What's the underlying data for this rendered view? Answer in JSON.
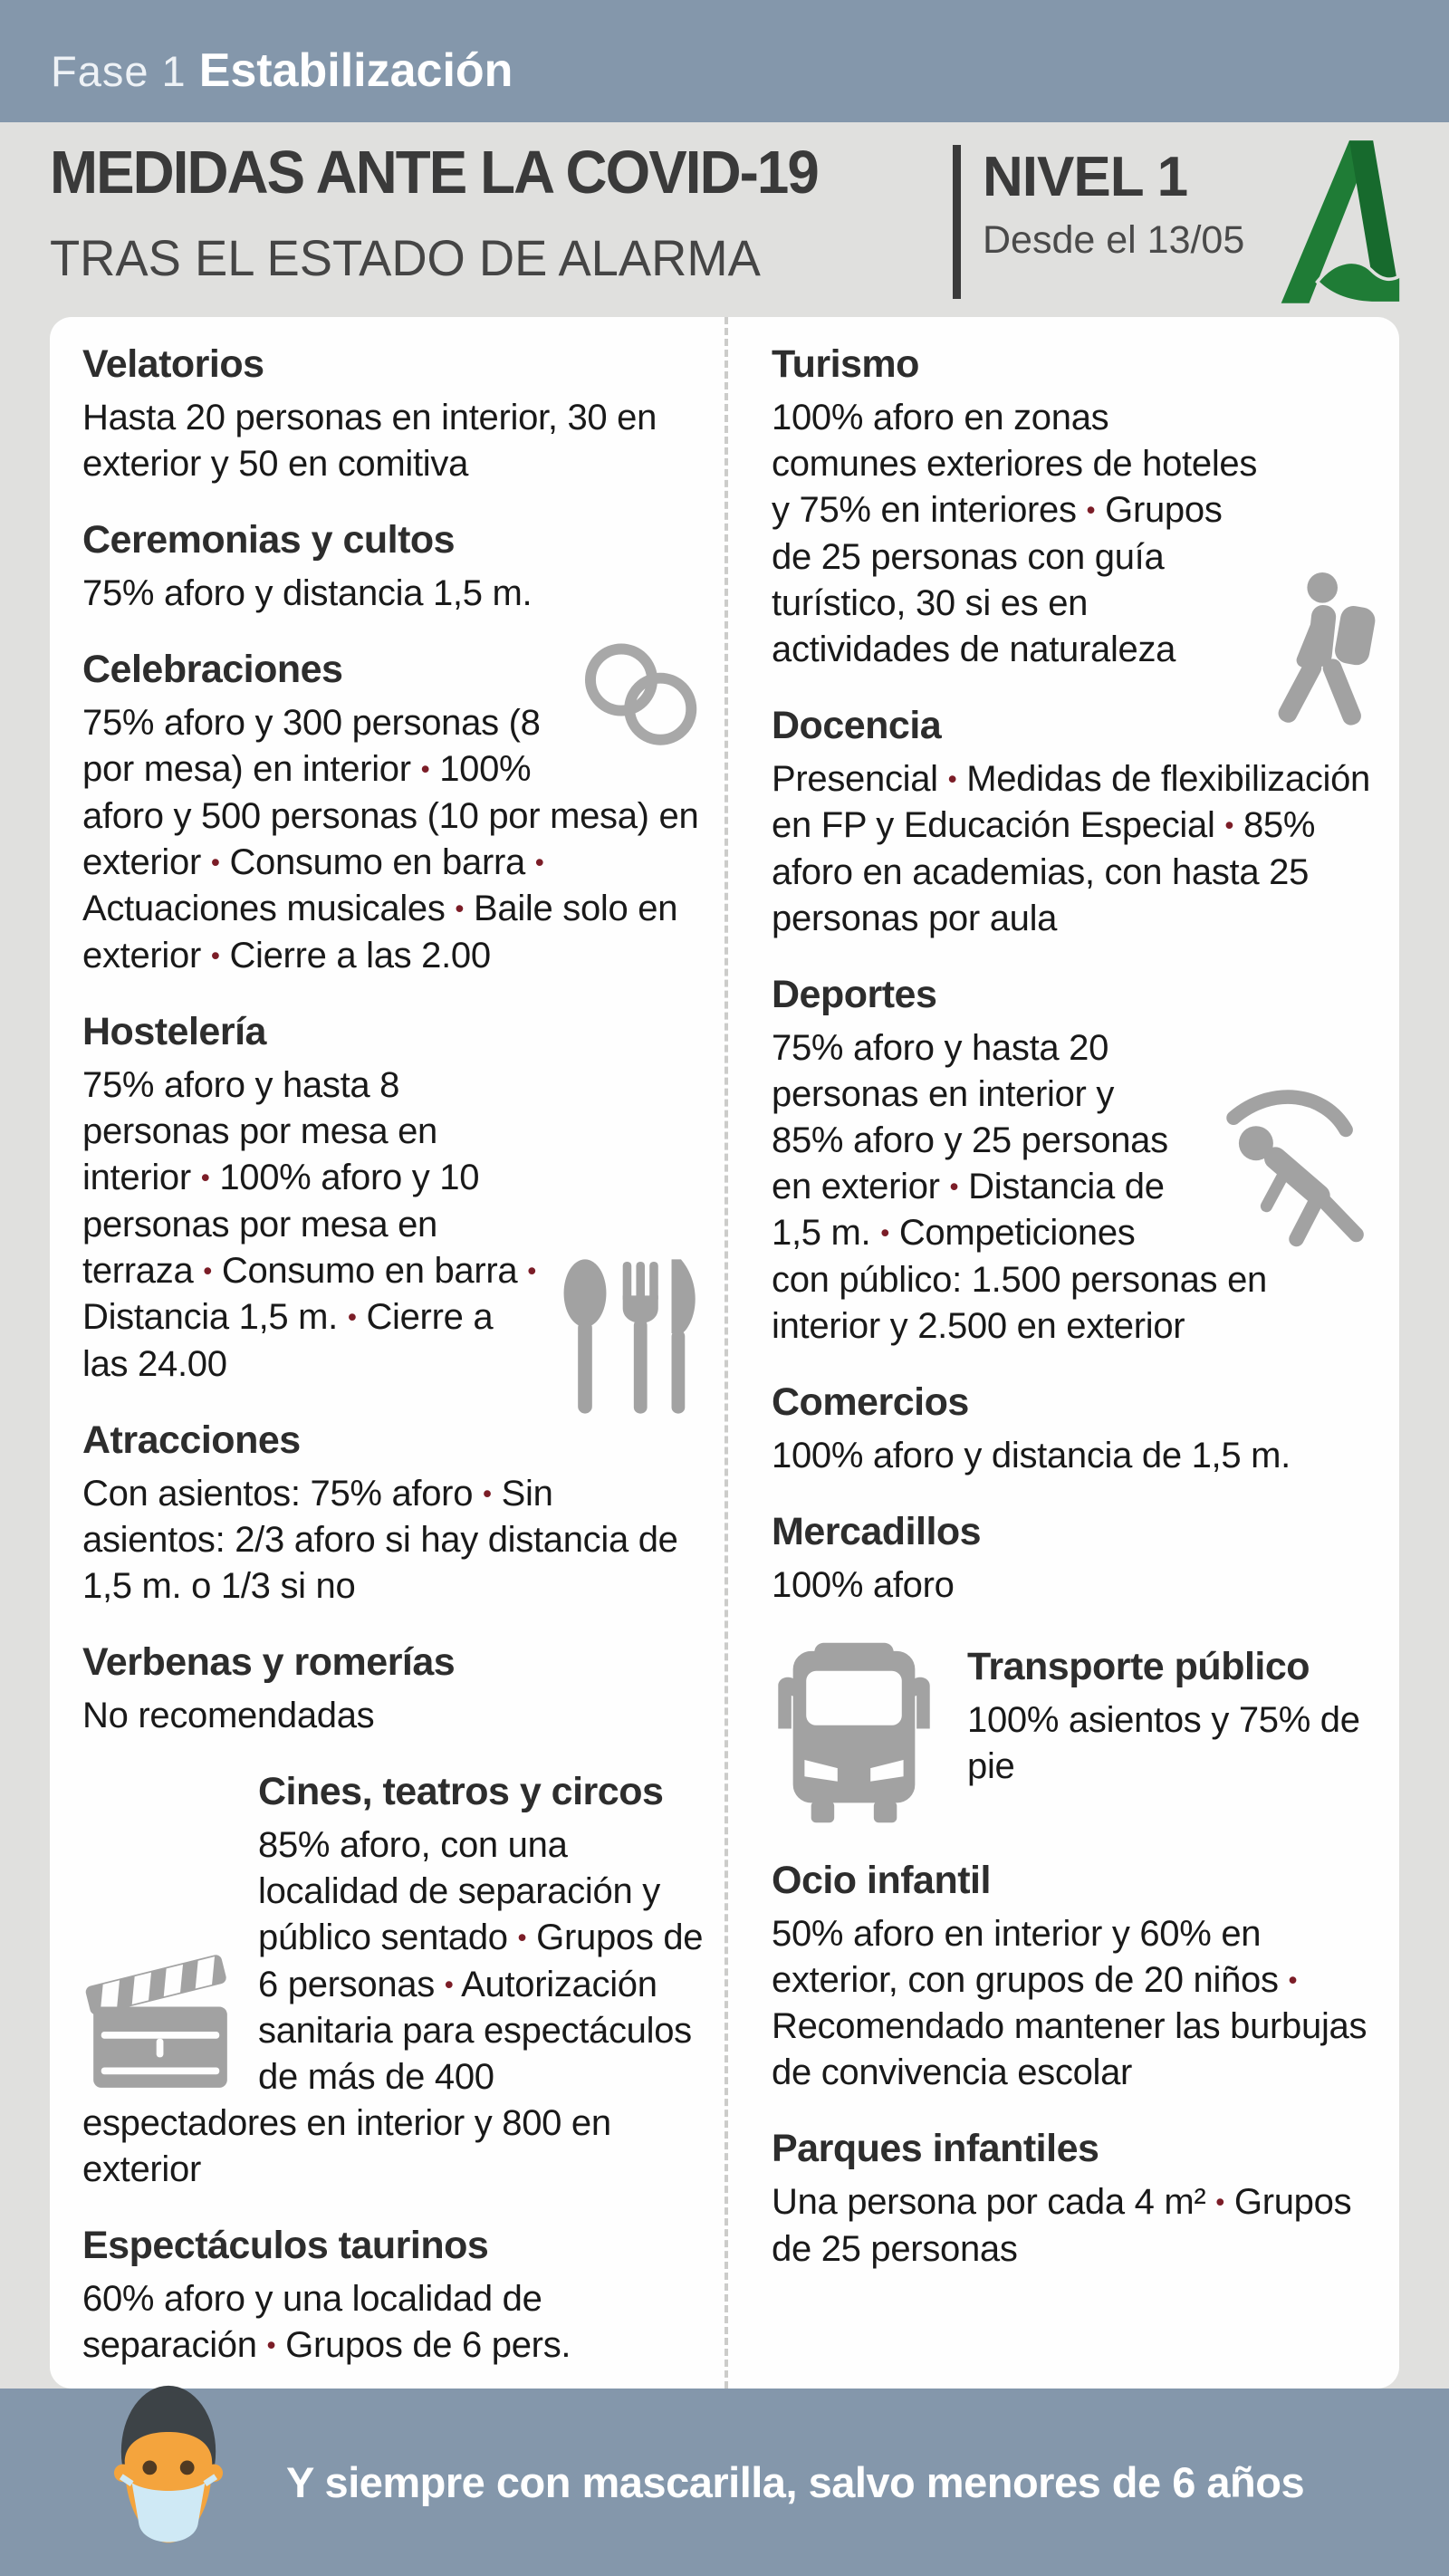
{
  "phase": {
    "label": "Fase 1",
    "name": "Estabilización"
  },
  "title": {
    "main": "MEDIDAS ANTE LA COVID-19",
    "sub": "TRAS EL ESTADO DE ALARMA",
    "level": "NIVEL 1",
    "since": "Desde el 13/05",
    "logo": "junta-de-andalucia-logo"
  },
  "sections": {
    "left": [
      {
        "title": "Velatorios",
        "body": "Hasta 20 personas en interior, 30 en exterior y 50 en comitiva",
        "icon": null
      },
      {
        "title": "Ceremonias y cultos",
        "body": "75% aforo y distancia 1,5 m.",
        "icon": null
      },
      {
        "title": "Celebraciones",
        "body": "75% aforo y 300 personas (8 por mesa) en interior • 100% aforo y 500 personas (10 por mesa) en exterior • Consumo en barra • Actuaciones musicales • Baile solo en exterior • Cierre a las 2.00",
        "icon": "wedding-rings"
      },
      {
        "title": "Hostelería",
        "body": "75% aforo y hasta 8 personas por mesa en interior • 100% aforo y 10 personas por mesa en terraza • Consumo en barra • Distancia 1,5 m. • Cierre a las 24.00",
        "icon": "cutlery"
      },
      {
        "title": "Atracciones",
        "body": "Con asientos: 75% aforo • Sin asientos: 2/3 aforo si hay distancia de 1,5 m. o 1/3 si no",
        "icon": null
      },
      {
        "title": "Verbenas y romerías",
        "body": "No recomendadas",
        "icon": null
      },
      {
        "title": "Cines, teatros y circos",
        "body": "85% aforo, con una localidad de separación y público sentado • Grupos de 6 personas • Autorización sanitaria para espectáculos de más de 400 espectadores en interior y 800 en exterior",
        "icon": "clapperboard"
      },
      {
        "title": "Espectáculos taurinos",
        "body": "60% aforo y una localidad de separación • Grupos de 6 pers.",
        "icon": null
      }
    ],
    "right": [
      {
        "title": "Turismo",
        "body": "100% aforo en zonas comunes exteriores de hoteles y 75% en interiores • Grupos de 25 personas con guía turístico, 30 si es en actividades de naturaleza",
        "icon": "hiker"
      },
      {
        "title": "Docencia",
        "body": "Presencial • Medidas de flexibilización en FP y Educación Especial • 85% aforo en academias, con hasta 25 personas por aula",
        "icon": null
      },
      {
        "title": "Deportes",
        "body": "75% aforo y hasta 20 personas en interior y 85% aforo y 25 personas en exterior • Distancia de 1,5 m. • Competiciones con público: 1.500 personas en interior y 2.500 en exterior",
        "icon": "exercise-person"
      },
      {
        "title": "Comercios",
        "body": "100% aforo y distancia de 1,5 m.",
        "icon": null
      },
      {
        "title": "Mercadillos",
        "body": "100% aforo",
        "icon": null
      },
      {
        "title": "Transporte público",
        "body": "100% asientos y 75% de pie",
        "icon": "bus"
      },
      {
        "title": "Ocio infantil",
        "body": "50% aforo en interior y 60% en exterior, con grupos de 20 niños • Recomendado mantener las burbujas de convivencia escolar",
        "icon": null
      },
      {
        "title": "Parques infantiles",
        "body": "Una persona por cada 4 m² • Grupos de 25 personas",
        "icon": null
      }
    ]
  },
  "footer": {
    "message": "Y siempre con mascarilla, salvo menores de 6 años",
    "icon": "masked-face"
  },
  "colors": {
    "frame_band": "#8497ab",
    "page_bg": "#e0e0de",
    "card_bg": "#fefefe",
    "heading_text": "#2d2d2d",
    "body_text": "#191919",
    "bullet_red": "#7b1d27",
    "icon_gray": "#a2a2a2",
    "logo_green": "#1f7c36",
    "logo_green_dark": "#176a2d",
    "mask_skin": "#f4a43d",
    "mask_blue": "#cfe9f5",
    "mask_hair": "#3d4347"
  }
}
